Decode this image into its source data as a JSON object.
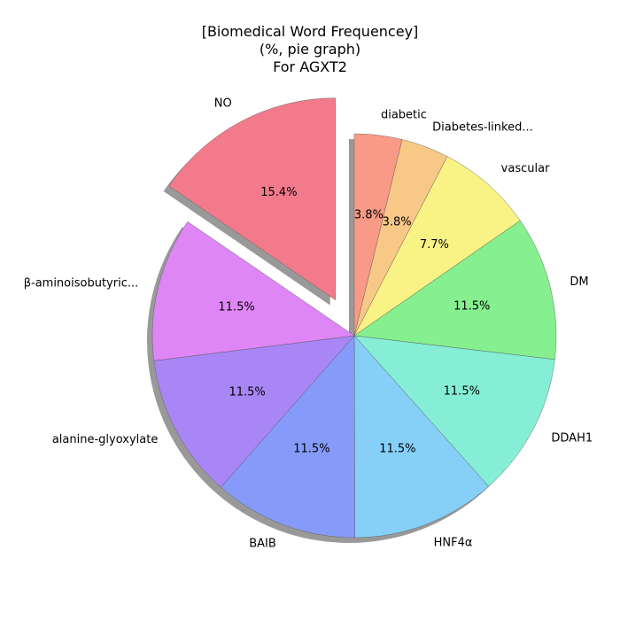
{
  "chart_data": {
    "type": "pie",
    "title_lines": [
      "[Biomedical Word Frequencey]",
      "(%, pie graph)",
      "For AGXT2"
    ],
    "start_angle_deg": 90,
    "direction": "clockwise",
    "shadow": true,
    "slices": [
      {
        "label": "diabetic",
        "value": 3.8,
        "pct_label": "3.8%",
        "color": "#f99a86",
        "explode": 0
      },
      {
        "label": "Diabetes-linked...",
        "value": 3.8,
        "pct_label": "3.8%",
        "color": "#f8c886",
        "explode": 0
      },
      {
        "label": "vascular",
        "value": 7.7,
        "pct_label": "7.7%",
        "color": "#f9f386",
        "explode": 0
      },
      {
        "label": "DM",
        "value": 11.5,
        "pct_label": "11.5%",
        "color": "#86ef8f",
        "explode": 0
      },
      {
        "label": "DDAH1",
        "value": 11.5,
        "pct_label": "11.5%",
        "color": "#86eed6",
        "explode": 0
      },
      {
        "label": "HNF4α",
        "value": 11.5,
        "pct_label": "11.5%",
        "color": "#86d0f8",
        "explode": 0
      },
      {
        "label": "BAIB",
        "value": 11.5,
        "pct_label": "11.5%",
        "color": "#869bf9",
        "explode": 0
      },
      {
        "label": "alanine-glyoxylate",
        "value": 11.5,
        "pct_label": "11.5%",
        "color": "#a886f6",
        "explode": 0
      },
      {
        "label": "β-aminoisobutyric...",
        "value": 11.5,
        "pct_label": "11.5%",
        "color": "#de86f6",
        "explode": 0
      },
      {
        "label": "NO",
        "value": 15.4,
        "pct_label": "15.4%",
        "color": "#f27a8a",
        "explode": 0.2
      }
    ]
  }
}
